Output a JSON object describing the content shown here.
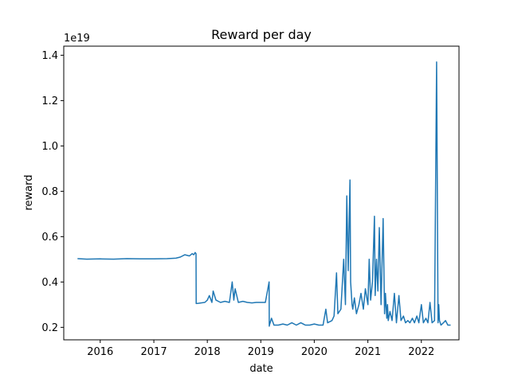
{
  "chart_data": {
    "type": "line",
    "title": "Reward per day",
    "xlabel": "date",
    "ylabel": "reward",
    "y_offset_label": "1e19",
    "y_multiplier": 1e+19,
    "xlim": [
      "2015-04-27",
      "2022-09-15"
    ],
    "ylim": [
      0.145,
      1.44
    ],
    "x_ticks": [
      {
        "value": "2016-01-01",
        "label": "2016"
      },
      {
        "value": "2017-01-01",
        "label": "2017"
      },
      {
        "value": "2018-01-01",
        "label": "2018"
      },
      {
        "value": "2019-01-01",
        "label": "2019"
      },
      {
        "value": "2020-01-01",
        "label": "2020"
      },
      {
        "value": "2021-01-01",
        "label": "2021"
      },
      {
        "value": "2022-01-01",
        "label": "2022"
      }
    ],
    "y_ticks": [
      {
        "value": 0.2,
        "label": "0.2"
      },
      {
        "value": 0.4,
        "label": "0.4"
      },
      {
        "value": 0.6,
        "label": "0.6"
      },
      {
        "value": 0.8,
        "label": "0.8"
      },
      {
        "value": 1.0,
        "label": "1.0"
      },
      {
        "value": 1.2,
        "label": "1.2"
      },
      {
        "value": 1.4,
        "label": "1.4"
      }
    ],
    "grid": false,
    "line_color": "#1f77b4",
    "series": [
      {
        "x": [
          "2015-07-30",
          "2015-10-01",
          "2016-01-01",
          "2016-04-01",
          "2016-07-01",
          "2016-10-01",
          "2017-01-01",
          "2017-04-01",
          "2017-06-01",
          "2017-07-01",
          "2017-08-01",
          "2017-09-01",
          "2017-09-20",
          "2017-10-01",
          "2017-10-10",
          "2017-10-16",
          "2017-10-17",
          "2017-11-01",
          "2017-12-15",
          "2018-01-01",
          "2018-01-15",
          "2018-02-01",
          "2018-02-10",
          "2018-03-01",
          "2018-04-01",
          "2018-05-01",
          "2018-06-01",
          "2018-06-20",
          "2018-07-01",
          "2018-07-10",
          "2018-08-01",
          "2018-09-01",
          "2018-10-01",
          "2018-11-01",
          "2018-12-01",
          "2019-01-01",
          "2019-02-01",
          "2019-02-27",
          "2019-02-28",
          "2019-03-01",
          "2019-03-15",
          "2019-04-01",
          "2019-05-01",
          "2019-06-01",
          "2019-07-01",
          "2019-08-01",
          "2019-09-01",
          "2019-10-01",
          "2019-11-01",
          "2019-12-01",
          "2020-01-01",
          "2020-02-01",
          "2020-03-01",
          "2020-03-20",
          "2020-04-01",
          "2020-05-01",
          "2020-05-15",
          "2020-06-01",
          "2020-06-10",
          "2020-07-01",
          "2020-07-20",
          "2020-08-01",
          "2020-08-10",
          "2020-08-20",
          "2020-09-01",
          "2020-09-05",
          "2020-09-10",
          "2020-09-15",
          "2020-09-20",
          "2020-10-01",
          "2020-10-15",
          "2020-11-01",
          "2020-11-15",
          "2020-12-01",
          "2020-12-15",
          "2021-01-01",
          "2021-01-10",
          "2021-01-20",
          "2021-02-01",
          "2021-02-15",
          "2021-02-20",
          "2021-03-01",
          "2021-03-10",
          "2021-03-20",
          "2021-04-01",
          "2021-04-15",
          "2021-04-25",
          "2021-05-01",
          "2021-05-10",
          "2021-05-15",
          "2021-05-20",
          "2021-06-01",
          "2021-06-15",
          "2021-07-01",
          "2021-07-15",
          "2021-08-01",
          "2021-08-15",
          "2021-09-01",
          "2021-09-15",
          "2021-10-01",
          "2021-10-15",
          "2021-11-01",
          "2021-11-15",
          "2021-12-01",
          "2021-12-15",
          "2022-01-01",
          "2022-01-15",
          "2022-02-01",
          "2022-02-15",
          "2022-03-01",
          "2022-03-15",
          "2022-04-01",
          "2022-04-15",
          "2022-04-25",
          "2022-04-30",
          "2022-05-05",
          "2022-05-15",
          "2022-06-01",
          "2022-06-15",
          "2022-07-01",
          "2022-07-15",
          "2022-07-20"
        ],
        "y": [
          0.503,
          0.501,
          0.502,
          0.501,
          0.503,
          0.502,
          0.502,
          0.503,
          0.505,
          0.51,
          0.52,
          0.515,
          0.525,
          0.52,
          0.53,
          0.525,
          0.305,
          0.306,
          0.31,
          0.32,
          0.34,
          0.31,
          0.36,
          0.32,
          0.31,
          0.315,
          0.31,
          0.4,
          0.32,
          0.37,
          0.31,
          0.315,
          0.31,
          0.308,
          0.31,
          0.31,
          0.31,
          0.4,
          0.205,
          0.21,
          0.24,
          0.21,
          0.21,
          0.215,
          0.21,
          0.22,
          0.21,
          0.22,
          0.21,
          0.21,
          0.215,
          0.21,
          0.21,
          0.28,
          0.22,
          0.23,
          0.25,
          0.44,
          0.26,
          0.28,
          0.5,
          0.3,
          0.78,
          0.45,
          0.85,
          0.4,
          0.35,
          0.3,
          0.28,
          0.33,
          0.26,
          0.3,
          0.35,
          0.28,
          0.37,
          0.3,
          0.5,
          0.32,
          0.4,
          0.69,
          0.34,
          0.5,
          0.36,
          0.64,
          0.3,
          0.68,
          0.26,
          0.35,
          0.24,
          0.3,
          0.23,
          0.27,
          0.23,
          0.35,
          0.22,
          0.34,
          0.23,
          0.25,
          0.22,
          0.23,
          0.22,
          0.24,
          0.22,
          0.25,
          0.22,
          0.3,
          0.22,
          0.24,
          0.22,
          0.31,
          0.22,
          0.23,
          1.37,
          0.22,
          0.3,
          0.23,
          0.21,
          0.22,
          0.23,
          0.21,
          0.21,
          0.21
        ]
      }
    ]
  }
}
